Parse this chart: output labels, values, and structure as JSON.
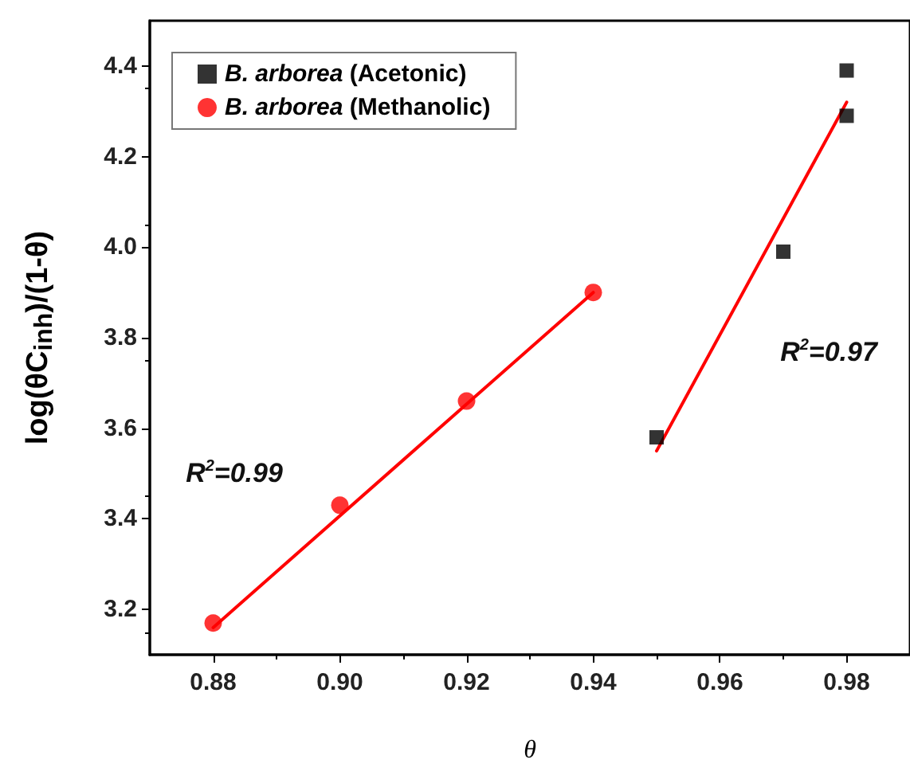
{
  "chart_data": {
    "type": "scatter",
    "xlabel": "θ",
    "ylabel": "log(θC$_{inh}$)/(1-θ)",
    "xlim": [
      0.87,
      0.99
    ],
    "ylim": [
      3.1,
      4.5
    ],
    "xticks": [
      {
        "value": 0.88,
        "label": "0.88"
      },
      {
        "value": 0.9,
        "label": "0.90"
      },
      {
        "value": 0.92,
        "label": "0.92"
      },
      {
        "value": 0.94,
        "label": "0.94"
      },
      {
        "value": 0.96,
        "label": "0.96"
      },
      {
        "value": 0.98,
        "label": "0.98"
      }
    ],
    "yticks": [
      {
        "value": 3.2,
        "label": "3.2"
      },
      {
        "value": 3.4,
        "label": "3.4"
      },
      {
        "value": 3.6,
        "label": "3.6"
      },
      {
        "value": 3.8,
        "label": "3.8"
      },
      {
        "value": 4.0,
        "label": "4.0"
      },
      {
        "value": 4.2,
        "label": "4.2"
      },
      {
        "value": 4.4,
        "label": "4.4"
      }
    ],
    "grid": false,
    "legend": "top left",
    "series": [
      {
        "name": "B. arborea (Acetonic)",
        "marker": "square",
        "color": "#000000",
        "x": [
          0.95,
          0.97,
          0.98,
          0.98
        ],
        "values": [
          3.58,
          3.99,
          4.39,
          4.29
        ]
      },
      {
        "name": "B. arborea (Methanolic)",
        "marker": "circle",
        "color": "#ff0000",
        "x": [
          0.88,
          0.9,
          0.92,
          0.94
        ],
        "values": [
          3.17,
          3.43,
          3.66,
          3.9
        ]
      },
      {
        "type": "line",
        "marker": "none",
        "color": "#ff0000",
        "x": [
          0.88,
          0.94
        ],
        "values": [
          3.16,
          3.9
        ]
      },
      {
        "type": "line",
        "marker": "none",
        "color": "#ff0000",
        "x": [
          0.95,
          0.98
        ],
        "values": [
          3.55,
          4.32
        ]
      }
    ],
    "annotations": [
      "R$^{2}$=0.99",
      "R$^{2}$=0.97"
    ]
  }
}
